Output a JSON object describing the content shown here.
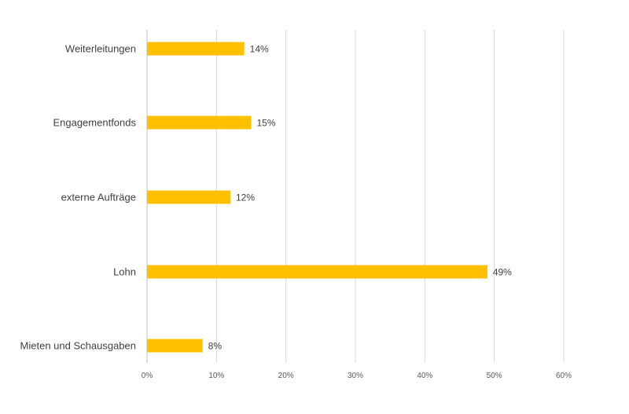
{
  "chart_data": {
    "type": "bar",
    "orientation": "horizontal",
    "title": "",
    "xlabel": "",
    "ylabel": "",
    "categories": [
      "Weiterleitungen",
      "Engagementfonds",
      "externe Aufträge",
      "Lohn",
      "Mieten und Schausgaben"
    ],
    "values": [
      14,
      15,
      12,
      49,
      8
    ],
    "data_labels": [
      "14%",
      "15%",
      "12%",
      "49%",
      "8%"
    ],
    "xlim": [
      0,
      60
    ],
    "x_ticks": [
      "0%",
      "10%",
      "20%",
      "30%",
      "40%",
      "50%",
      "60%"
    ],
    "grid": "vertical",
    "legend": "none",
    "bar_color": "#FFC000"
  }
}
